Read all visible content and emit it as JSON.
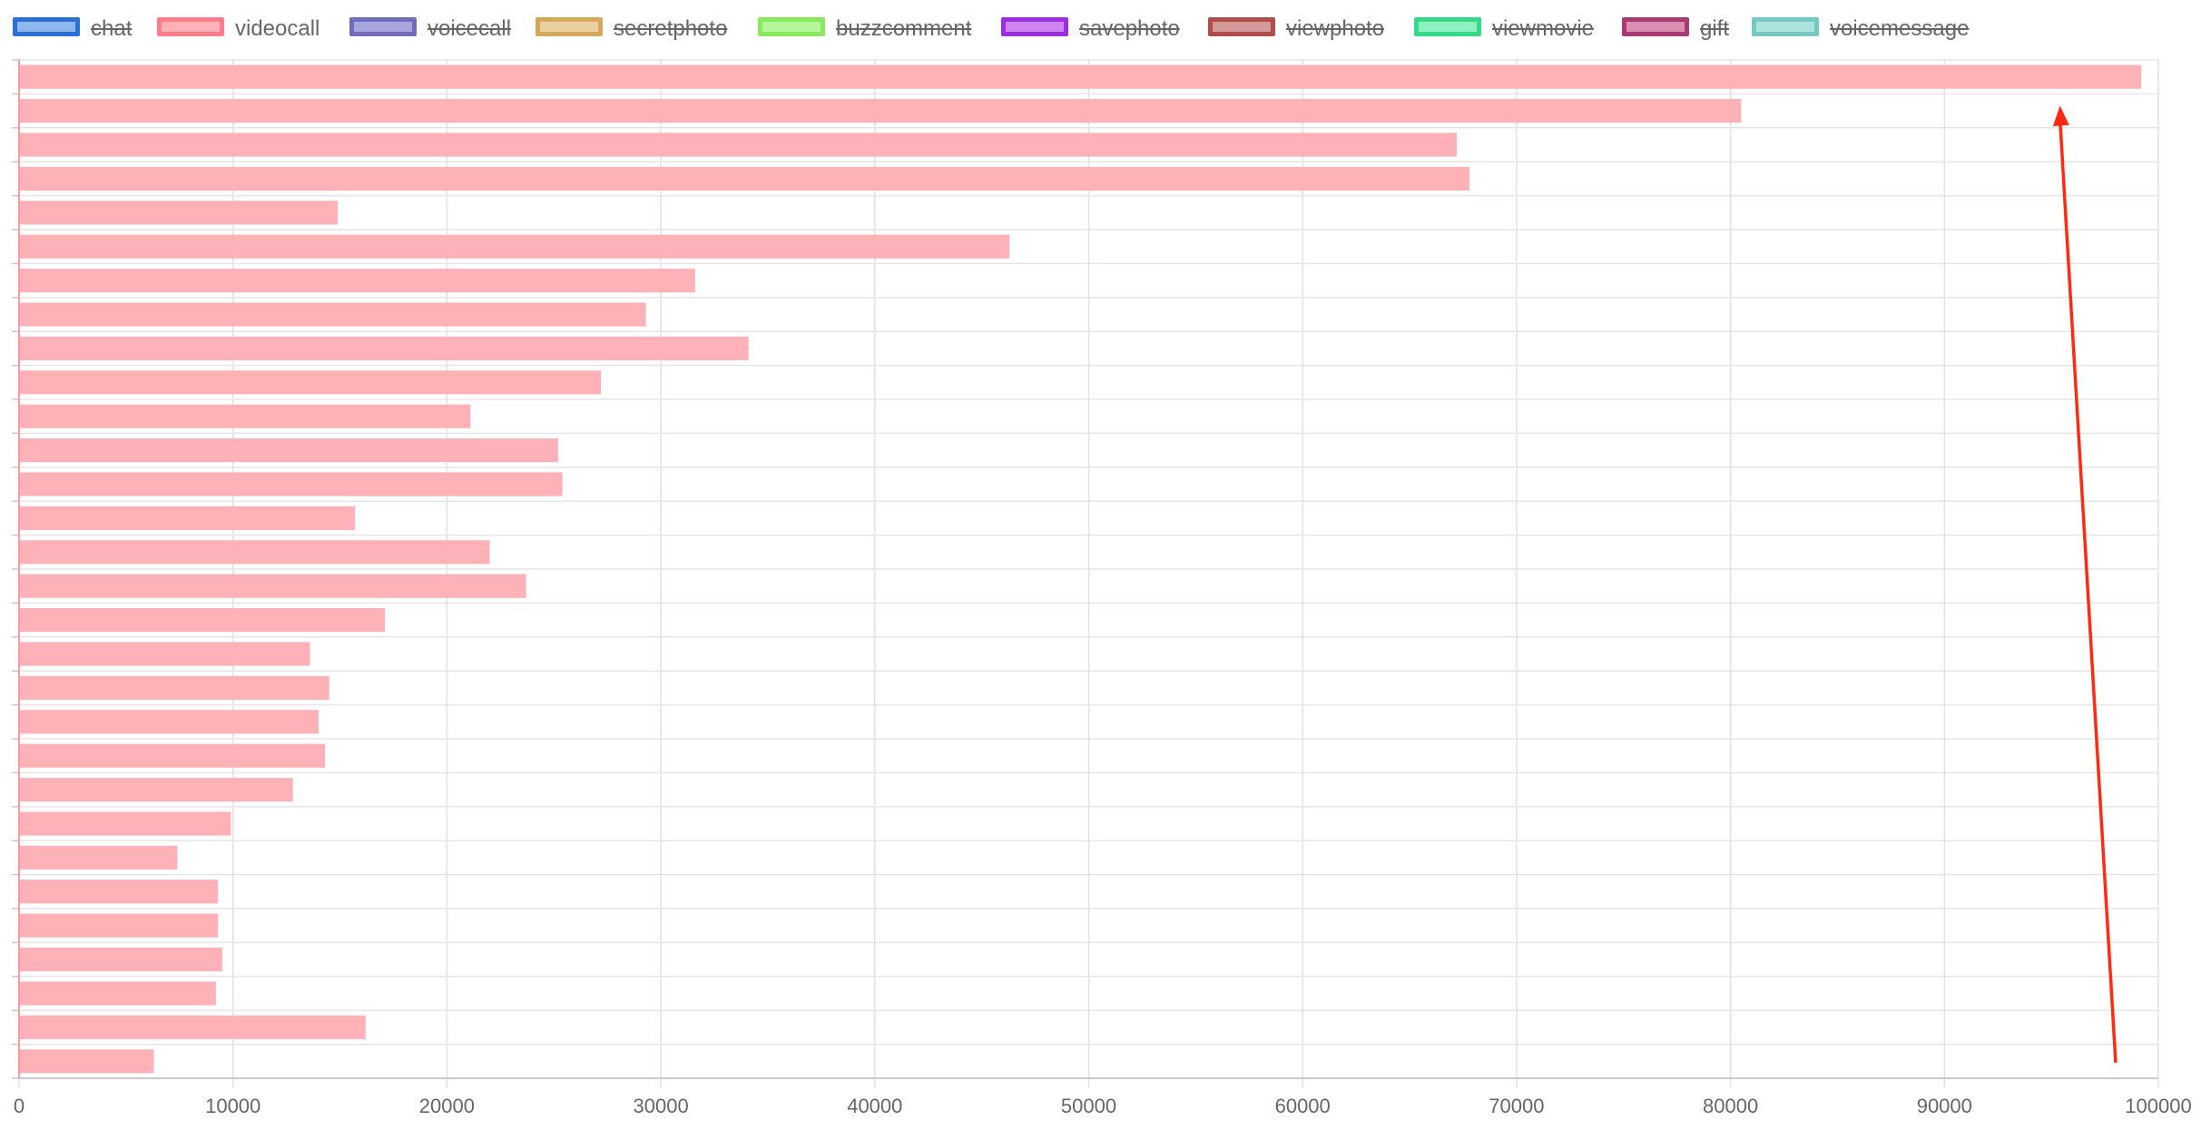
{
  "legend": {
    "items": [
      {
        "label": "chat",
        "hidden": true,
        "fill": "#8fb8ee",
        "border": "#2c6fd6"
      },
      {
        "label": "videocall",
        "hidden": false,
        "fill": "#ffb1b8",
        "border": "#ff7c88"
      },
      {
        "label": "voicecall",
        "hidden": true,
        "fill": "#a9a6db",
        "border": "#716cbd"
      },
      {
        "label": "secretphoto",
        "hidden": true,
        "fill": "#ead0a3",
        "border": "#d5a85c"
      },
      {
        "label": "buzzcomment",
        "hidden": true,
        "fill": "#b6f69c",
        "border": "#86ea5c"
      },
      {
        "label": "savephoto",
        "hidden": true,
        "fill": "#cf84ef",
        "border": "#9d2de0"
      },
      {
        "label": "viewphoto",
        "hidden": true,
        "fill": "#d49a9a",
        "border": "#b34d4d"
      },
      {
        "label": "viewmovie",
        "hidden": true,
        "fill": "#8ff0c1",
        "border": "#35d987"
      },
      {
        "label": "gift",
        "hidden": true,
        "fill": "#d990b3",
        "border": "#a93a72"
      },
      {
        "label": "voicemessage",
        "hidden": true,
        "fill": "#aee3de",
        "border": "#75c9c1"
      }
    ]
  },
  "chart_data": {
    "type": "bar",
    "orientation": "horizontal",
    "grid": true,
    "legend_position": "top",
    "xlim": [
      0,
      100000
    ],
    "xticks": [
      "0",
      "10000",
      "20000",
      "30000",
      "40000",
      "50000",
      "60000",
      "70000",
      "80000",
      "90000",
      "100000"
    ],
    "series": [
      {
        "name": "videocall",
        "color": "#ffb1b8",
        "values": [
          99200,
          80500,
          67200,
          67800,
          14900,
          46300,
          31600,
          29300,
          34100,
          27200,
          21100,
          25200,
          25400,
          15700,
          22000,
          23700,
          17100,
          13600,
          14500,
          14000,
          14300,
          12800,
          9900,
          7400,
          9300,
          9300,
          9500,
          9200,
          16200,
          6300
        ]
      }
    ],
    "annotations": [
      {
        "type": "arrow",
        "color": "#ff2a12",
        "from": {
          "x": 98000,
          "y_bar_index": 29
        },
        "to": {
          "x": 95400,
          "y_bar_index": 1
        }
      }
    ]
  }
}
